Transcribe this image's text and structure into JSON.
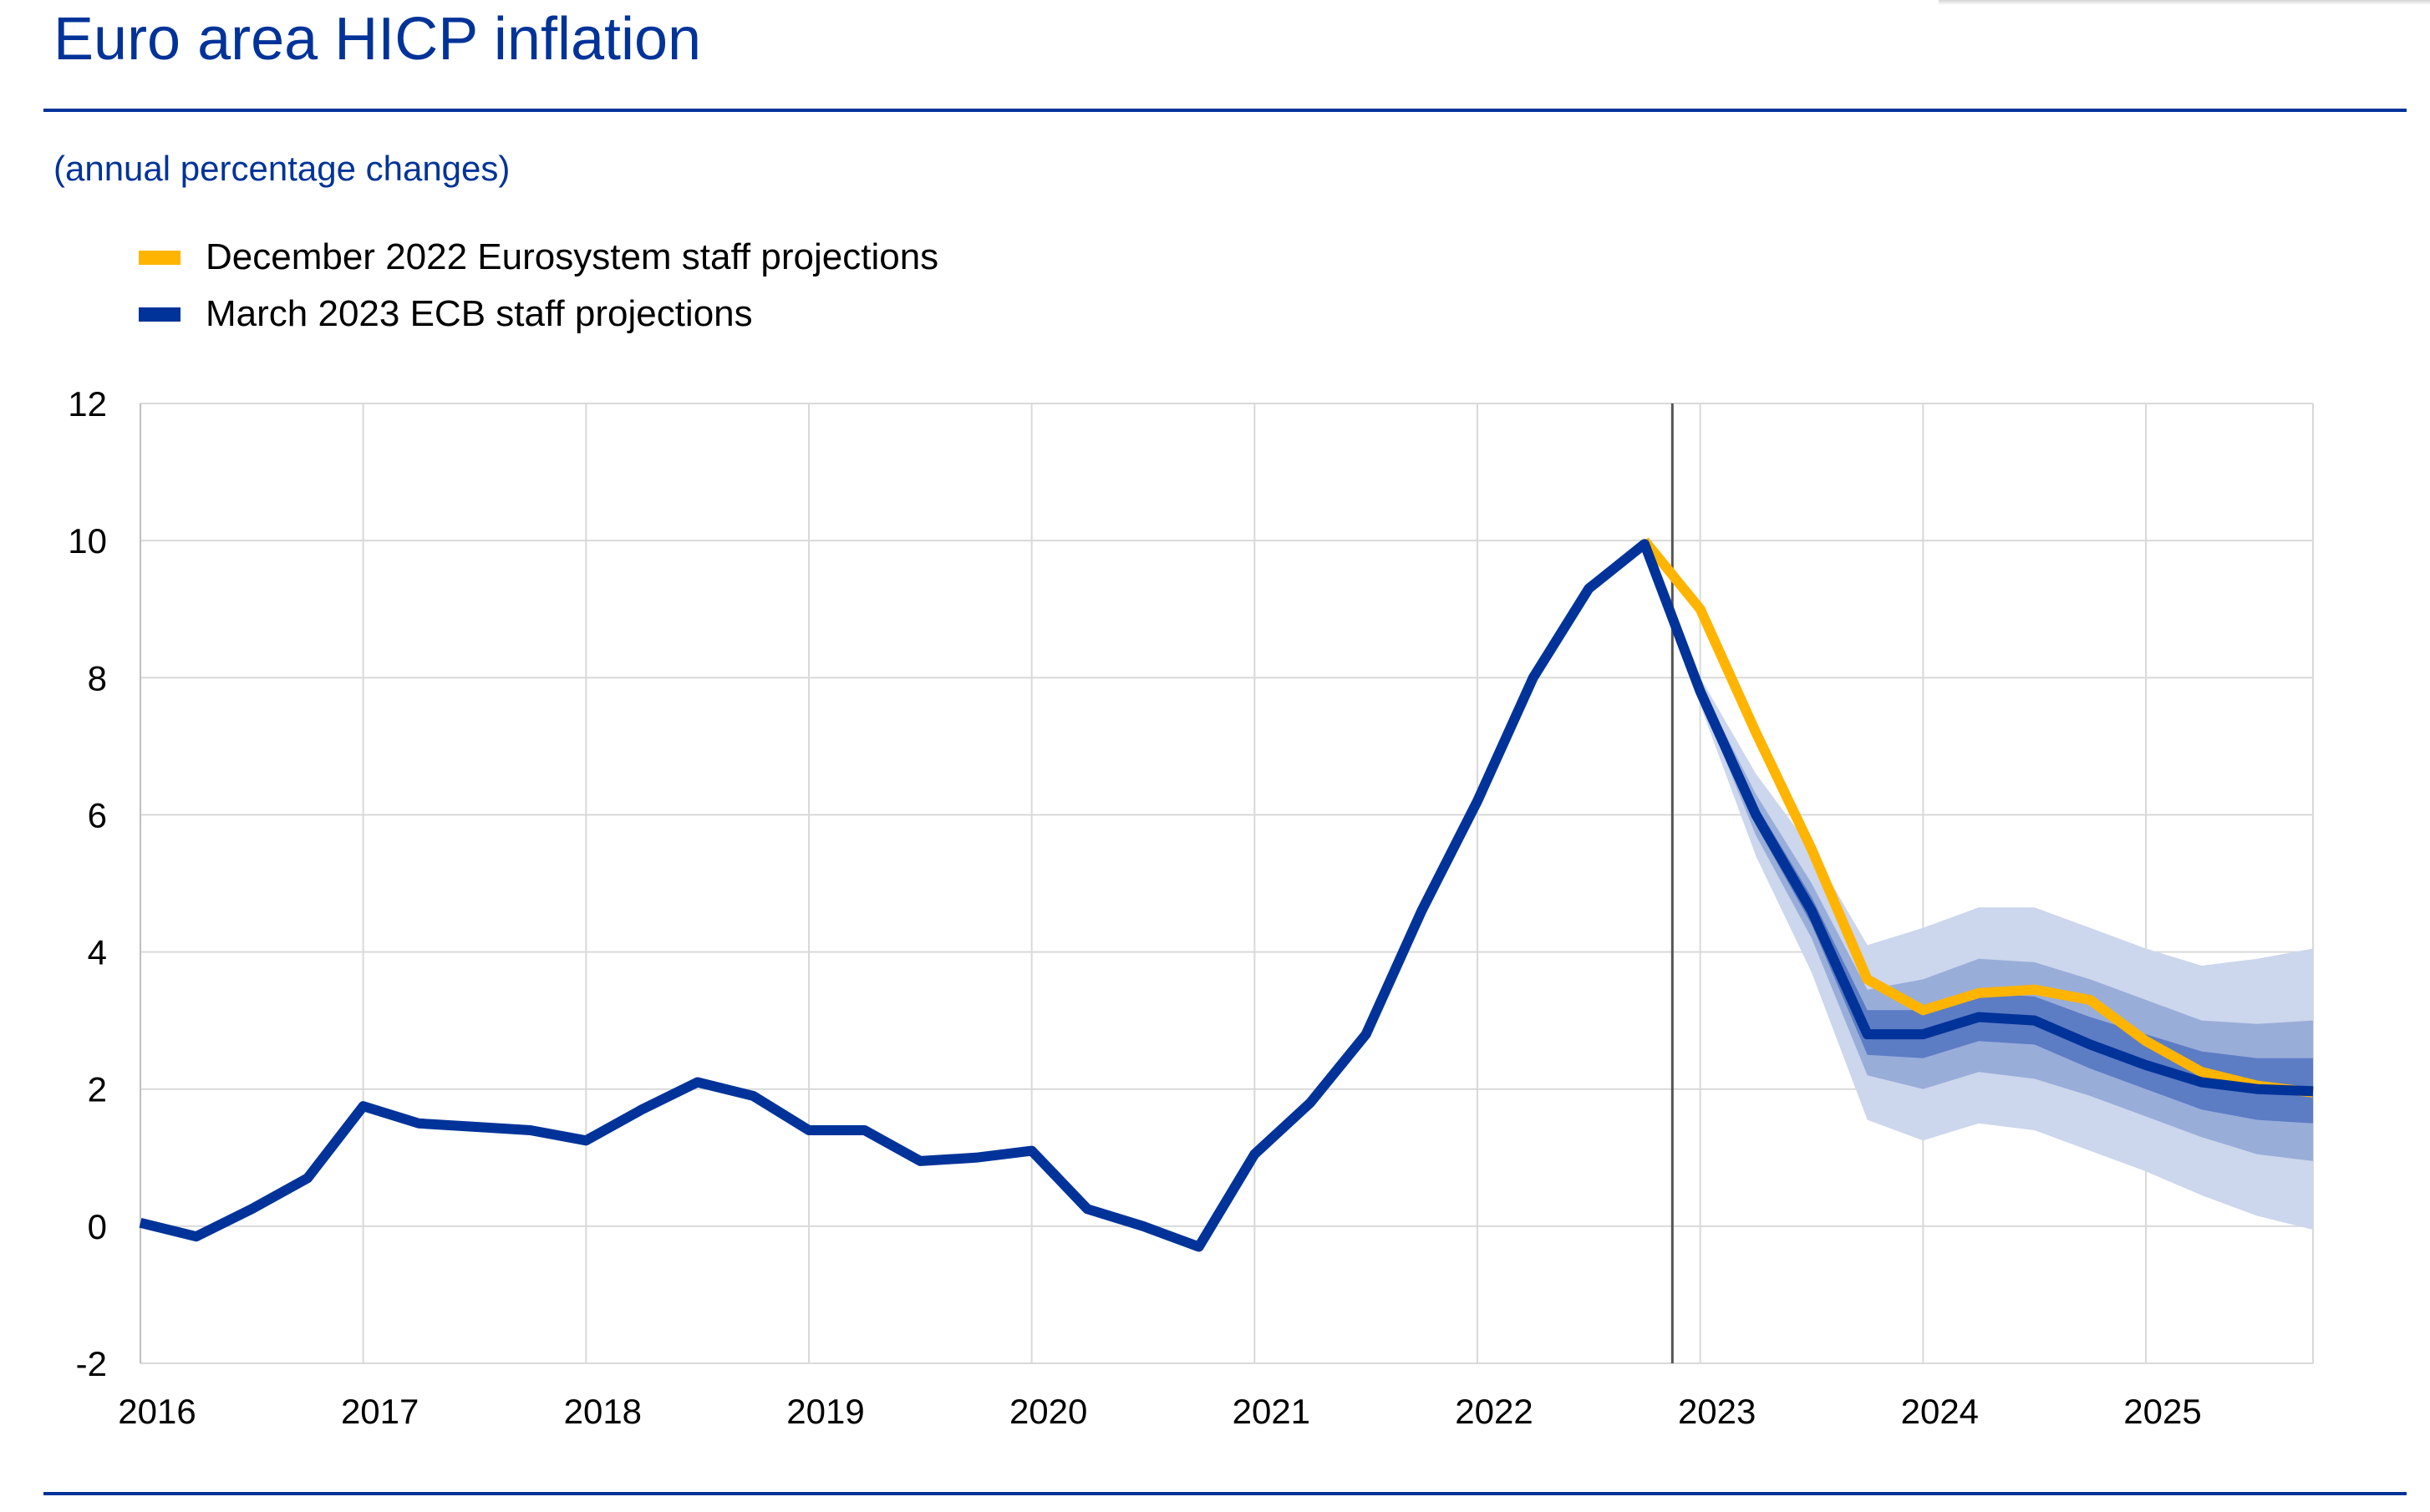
{
  "title": "Euro area HICP inflation",
  "subtitle": "(annual percentage changes)",
  "colors": {
    "brand": "#003399",
    "december_line": "#ffb400",
    "march_line": "#003399",
    "band_outer": "#ccd6ec",
    "band_middle": "#99add9",
    "band_inner": "#5c7cc4",
    "grid": "#d9d9d9",
    "cutoff": "#555555"
  },
  "legend": [
    {
      "label": "December 2022 Eurosystem staff projections",
      "color": "#ffb400"
    },
    {
      "label": "March 2023 ECB staff projections",
      "color": "#003399"
    }
  ],
  "chart_data": {
    "type": "line",
    "title": "Euro area HICP inflation",
    "subtitle": "(annual percentage changes)",
    "xlabel": "",
    "ylabel": "",
    "x_ticks": [
      "2016",
      "2017",
      "2018",
      "2019",
      "2020",
      "2021",
      "2022",
      "2023",
      "2024",
      "2025"
    ],
    "y_ticks": [
      "12",
      "10",
      "8",
      "6",
      "4",
      "2",
      "0",
      "-2"
    ],
    "ylim": [
      -2,
      12
    ],
    "xlim": [
      2016.0,
      2025.75
    ],
    "grid": true,
    "legend_position": "top-left",
    "projection_cutoff": 2022.875,
    "series": [
      {
        "name": "December 2022 Eurosystem staff projections",
        "color": "#ffb400",
        "x": [
          2022.75,
          2023.0,
          2023.25,
          2023.5,
          2023.75,
          2024.0,
          2024.25,
          2024.5,
          2024.75,
          2025.0,
          2025.25,
          2025.5,
          2025.75
        ],
        "y": [
          10.0,
          9.0,
          7.2,
          5.5,
          3.6,
          3.15,
          3.4,
          3.45,
          3.3,
          2.7,
          2.25,
          2.05,
          1.95
        ]
      },
      {
        "name": "March 2023 ECB staff projections",
        "color": "#003399",
        "x": [
          2016.0,
          2016.25,
          2016.5,
          2016.75,
          2017.0,
          2017.25,
          2017.5,
          2017.75,
          2018.0,
          2018.25,
          2018.5,
          2018.75,
          2019.0,
          2019.25,
          2019.5,
          2019.75,
          2020.0,
          2020.25,
          2020.5,
          2020.75,
          2021.0,
          2021.25,
          2021.5,
          2021.75,
          2022.0,
          2022.25,
          2022.5,
          2022.75,
          2023.0,
          2023.25,
          2023.5,
          2023.75,
          2024.0,
          2024.25,
          2024.5,
          2024.75,
          2025.0,
          2025.25,
          2025.5,
          2025.75
        ],
        "y": [
          0.05,
          -0.15,
          0.25,
          0.7,
          1.75,
          1.5,
          1.45,
          1.4,
          1.25,
          1.7,
          2.1,
          1.9,
          1.4,
          1.4,
          0.95,
          1.0,
          1.1,
          0.25,
          0.0,
          -0.3,
          1.05,
          1.8,
          2.8,
          4.6,
          6.2,
          8.0,
          9.3,
          9.95,
          7.8,
          6.0,
          4.6,
          2.8,
          2.8,
          3.05,
          3.0,
          2.65,
          2.35,
          2.1,
          2.0,
          1.97
        ]
      }
    ],
    "uncertainty_bands": {
      "x": [
        2022.75,
        2023.0,
        2023.25,
        2023.5,
        2023.75,
        2024.0,
        2024.25,
        2024.5,
        2024.75,
        2025.0,
        2025.25,
        2025.5,
        2025.75
      ],
      "outer_upper": [
        10.0,
        8.0,
        6.6,
        5.5,
        4.1,
        4.35,
        4.65,
        4.65,
        4.35,
        4.05,
        3.8,
        3.9,
        4.05
      ],
      "outer_lower": [
        10.0,
        7.6,
        5.4,
        3.7,
        1.55,
        1.25,
        1.5,
        1.4,
        1.1,
        0.8,
        0.45,
        0.15,
        -0.05
      ],
      "middle_upper": [
        10.0,
        7.9,
        6.3,
        5.0,
        3.45,
        3.6,
        3.9,
        3.85,
        3.6,
        3.3,
        3.0,
        2.95,
        3.0
      ],
      "middle_lower": [
        10.0,
        7.7,
        5.7,
        4.2,
        2.2,
        2.0,
        2.25,
        2.15,
        1.9,
        1.6,
        1.3,
        1.05,
        0.95
      ],
      "inner_upper": [
        10.0,
        7.85,
        6.15,
        4.8,
        3.15,
        3.15,
        3.4,
        3.35,
        3.05,
        2.8,
        2.55,
        2.45,
        2.45
      ],
      "inner_lower": [
        10.0,
        7.75,
        5.85,
        4.4,
        2.5,
        2.45,
        2.7,
        2.65,
        2.3,
        2.0,
        1.7,
        1.55,
        1.5
      ]
    }
  }
}
